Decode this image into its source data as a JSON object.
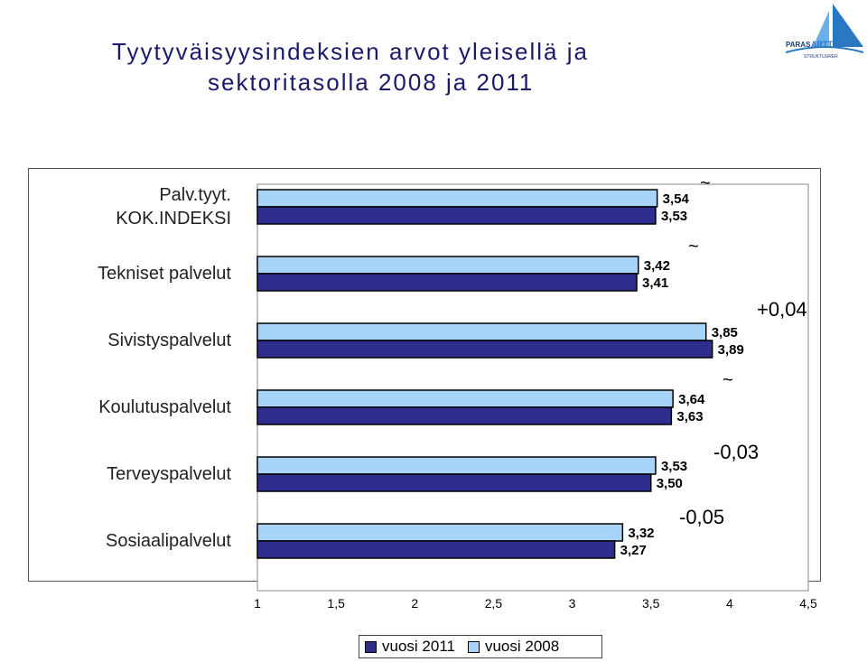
{
  "header": {
    "title_line1": "Tyytyväisyysindeksien arvot yleisellä ja",
    "title_line2": "sektoritasolla 2008 ja 2011",
    "logo_text_left": "PARAS",
    "logo_text_right": "ARTTU",
    "logo_sub": "STRUKTUURER"
  },
  "colors": {
    "series_2011": "#2e2e8f",
    "series_2008": "#a8d4fb"
  },
  "chart_data": {
    "type": "bar",
    "orientation": "horizontal",
    "categories": [
      "Palv.tyyt. KOK.INDEKSI",
      "Tekniset palvelut",
      "Sivistyspalvelut",
      "Koulutuspalvelut",
      "Terveyspalvelut",
      "Sosiaalipalvelut"
    ],
    "category_lines": [
      [
        "Palv.tyyt.",
        "KOK.INDEKSI"
      ],
      [
        "Tekniset palvelut"
      ],
      [
        "Sivistyspalvelut"
      ],
      [
        "Koulutuspalvelut"
      ],
      [
        "Terveyspalvelut"
      ],
      [
        "Sosiaalipalvelut"
      ]
    ],
    "series": [
      {
        "name": "vuosi 2008",
        "values": [
          3.54,
          3.42,
          3.85,
          3.64,
          3.53,
          3.32
        ],
        "labels": [
          "3,54",
          "3,42",
          "3,85",
          "3,64",
          "3,53",
          "3,32"
        ]
      },
      {
        "name": "vuosi 2011",
        "values": [
          3.53,
          3.41,
          3.89,
          3.63,
          3.5,
          3.27
        ],
        "labels": [
          "3,53",
          "3,41",
          "3,89",
          "3,63",
          "3,50",
          "3,27"
        ]
      }
    ],
    "xlim": [
      1,
      4.5
    ],
    "xticks": [
      "1",
      "1,5",
      "2",
      "2,5",
      "3",
      "3,5",
      "4",
      "4,5"
    ],
    "xtick_values": [
      1,
      1.5,
      2,
      2.5,
      3,
      3.5,
      4,
      4.5
    ],
    "annotations": [
      "~",
      "~",
      "+0,04",
      "~",
      "-0,03",
      "-0,05"
    ],
    "legend": [
      "vuosi 2011",
      "vuosi 2008"
    ],
    "legend_position": "bottom"
  }
}
